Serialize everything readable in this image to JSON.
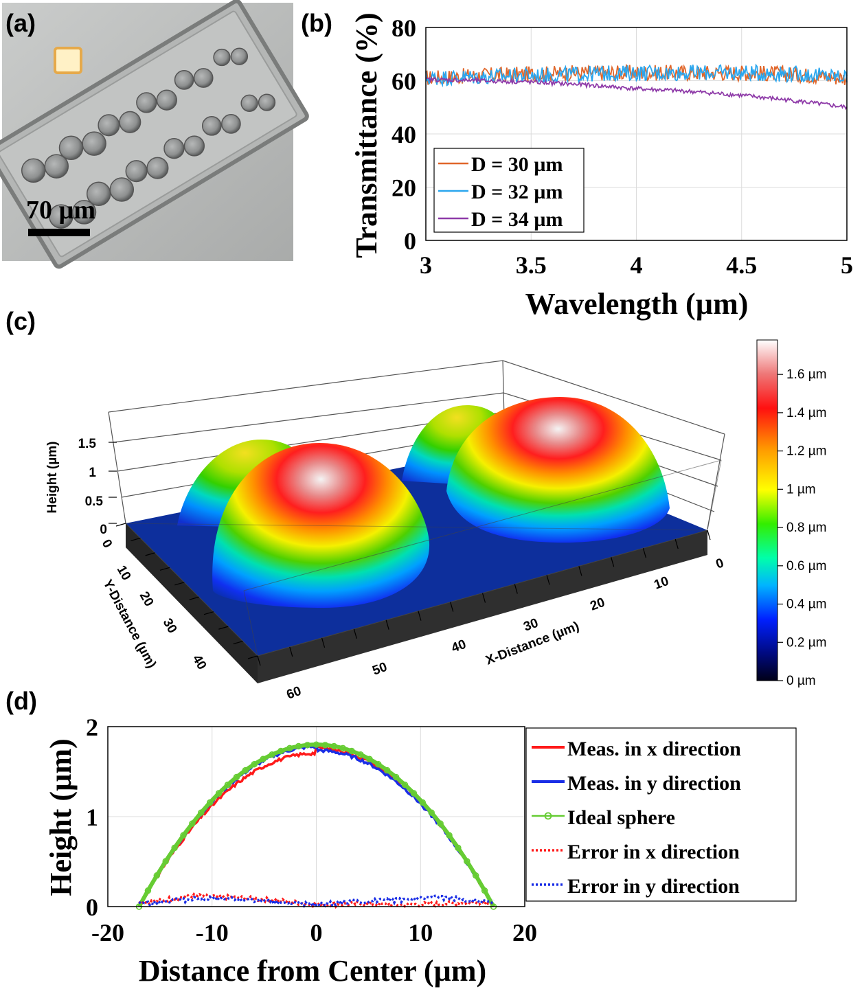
{
  "figure": {
    "panel_labels": [
      "(a)",
      "(b)",
      "(c)",
      "(d)"
    ]
  },
  "panel_a": {
    "scale_bar_label": "70 µm"
  },
  "chart_data": [
    {
      "panel": "(b)",
      "type": "line",
      "xlabel": "Wavelength (µm)",
      "ylabel": "Transmittance (%)",
      "xlim": [
        3,
        5
      ],
      "ylim": [
        0,
        80
      ],
      "xticks": [
        "3",
        "3.5",
        "4",
        "4.5",
        "5"
      ],
      "yticks": [
        "0",
        "20",
        "40",
        "60",
        "80"
      ],
      "grid": true,
      "legend_position": "bottom-left",
      "series": [
        {
          "name": "D = 30 µm",
          "color": "#e0662a",
          "x": [
            3.0,
            3.25,
            3.5,
            3.75,
            4.0,
            4.25,
            4.5,
            4.75,
            5.0
          ],
          "values": [
            61,
            62,
            62.5,
            63,
            63,
            63,
            63,
            62.5,
            61
          ]
        },
        {
          "name": "D = 32 µm",
          "color": "#2aa6ee",
          "x": [
            3.0,
            3.25,
            3.5,
            3.75,
            4.0,
            4.25,
            4.5,
            4.75,
            5.0
          ],
          "values": [
            61,
            61.5,
            62,
            62.5,
            63,
            63,
            63,
            62.5,
            61.5
          ]
        },
        {
          "name": "D = 34 µm",
          "color": "#8e3aa8",
          "x": [
            3.0,
            3.25,
            3.5,
            3.75,
            4.0,
            4.25,
            4.5,
            4.75,
            5.0
          ],
          "values": [
            60.5,
            60,
            59.5,
            58.5,
            57,
            56,
            54.5,
            52.5,
            50
          ]
        }
      ]
    },
    {
      "panel": "(c)",
      "type": "heatmap",
      "zlabel": "Height (µm)",
      "xlabel": "X-Distance (µm)",
      "ylabel": "Y-Distance (µm)",
      "zticks": [
        "0",
        "0.5",
        "1",
        "1.5"
      ],
      "xticks": [
        "0",
        "10",
        "20",
        "30",
        "40",
        "50",
        "60"
      ],
      "yticks": [
        "0",
        "10",
        "20",
        "30",
        "40"
      ],
      "colorbar_ticks": [
        "0 µm",
        "0.2 µm",
        "0.4 µm",
        "0.6 µm",
        "0.8 µm",
        "1 µm",
        "1.2 µm",
        "1.4 µm",
        "1.6 µm"
      ],
      "colorbar_range": [
        0,
        1.78
      ]
    },
    {
      "panel": "(d)",
      "type": "line",
      "xlabel": "Distance from Center (µm)",
      "ylabel": "Height (µm)",
      "xlim": [
        -20,
        20
      ],
      "ylim": [
        0,
        2
      ],
      "xticks": [
        "-20",
        "-10",
        "0",
        "10",
        "20"
      ],
      "yticks": [
        "0",
        "1",
        "2"
      ],
      "grid": true,
      "legend_position": "right",
      "radius": 17,
      "peak_height": 1.8,
      "series": [
        {
          "name": "Meas. in x direction",
          "color": "#ff1a1a",
          "style": "solid"
        },
        {
          "name": "Meas. in y direction",
          "color": "#1a2ee6",
          "style": "solid"
        },
        {
          "name": "Ideal sphere",
          "color": "#66cc33",
          "style": "solid-circle"
        },
        {
          "name": "Error in x direction",
          "color": "#ff1a1a",
          "style": "dotted",
          "x": [
            -16,
            -12,
            -8,
            -4,
            0,
            4,
            8,
            12,
            16
          ],
          "values": [
            0.05,
            0.12,
            0.1,
            0.07,
            0.02,
            0.03,
            0.02,
            0.03,
            0.05
          ]
        },
        {
          "name": "Error in y direction",
          "color": "#1a2ee6",
          "style": "dotted",
          "x": [
            -16,
            -12,
            -8,
            -4,
            0,
            4,
            8,
            12,
            16
          ],
          "values": [
            0.04,
            0.08,
            0.09,
            0.05,
            0.02,
            0.06,
            0.07,
            0.1,
            0.06
          ]
        }
      ]
    }
  ]
}
